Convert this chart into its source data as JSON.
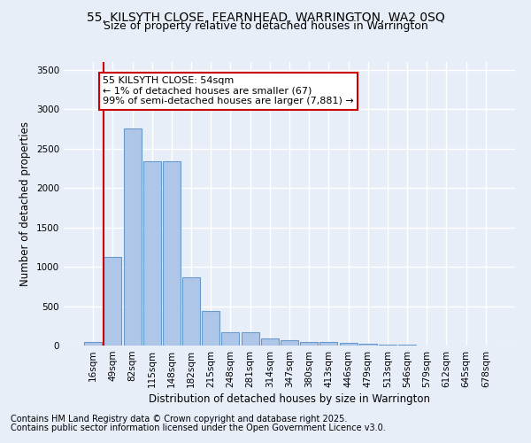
{
  "title_line1": "55, KILSYTH CLOSE, FEARNHEAD, WARRINGTON, WA2 0SQ",
  "title_line2": "Size of property relative to detached houses in Warrington",
  "xlabel": "Distribution of detached houses by size in Warrington",
  "ylabel": "Number of detached properties",
  "categories": [
    "16sqm",
    "49sqm",
    "82sqm",
    "115sqm",
    "148sqm",
    "182sqm",
    "215sqm",
    "248sqm",
    "281sqm",
    "314sqm",
    "347sqm",
    "380sqm",
    "413sqm",
    "446sqm",
    "479sqm",
    "513sqm",
    "546sqm",
    "579sqm",
    "612sqm",
    "645sqm",
    "678sqm"
  ],
  "values": [
    50,
    1120,
    2760,
    2340,
    2340,
    870,
    440,
    170,
    165,
    90,
    65,
    50,
    50,
    30,
    25,
    10,
    10,
    5,
    0,
    0,
    0
  ],
  "bar_color": "#aec6e8",
  "bar_edge_color": "#6699cc",
  "vline_x_index": 1,
  "vline_color": "#cc0000",
  "annotation_text_line1": "55 KILSYTH CLOSE: 54sqm",
  "annotation_text_line2": "← 1% of detached houses are smaller (67)",
  "annotation_text_line3": "99% of semi-detached houses are larger (7,881) →",
  "annotation_box_color": "#ffffff",
  "annotation_box_edge_color": "#cc0000",
  "ylim": [
    0,
    3600
  ],
  "yticks": [
    0,
    500,
    1000,
    1500,
    2000,
    2500,
    3000,
    3500
  ],
  "bg_color": "#e8eef8",
  "grid_color": "#ffffff",
  "footer_line1": "Contains HM Land Registry data © Crown copyright and database right 2025.",
  "footer_line2": "Contains public sector information licensed under the Open Government Licence v3.0.",
  "title_fontsize": 10,
  "subtitle_fontsize": 9,
  "axis_label_fontsize": 8.5,
  "tick_fontsize": 7.5,
  "annotation_fontsize": 8,
  "footer_fontsize": 7
}
